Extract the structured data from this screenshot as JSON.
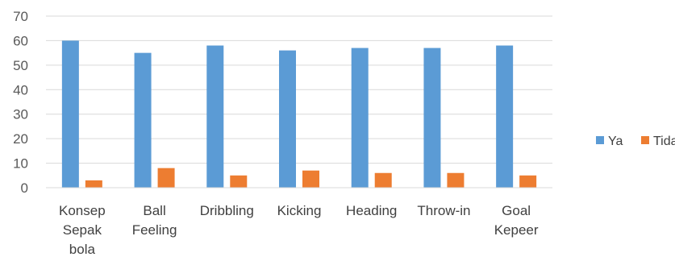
{
  "chart_data": {
    "type": "bar",
    "title": "",
    "xlabel": "",
    "ylabel": "",
    "ylim": [
      0,
      70
    ],
    "yticks": [
      0,
      10,
      20,
      30,
      40,
      50,
      60,
      70
    ],
    "grid": true,
    "legend_position": "right",
    "categories": [
      [
        "Konsep",
        "Sepak",
        "bola"
      ],
      [
        "Ball",
        "Feeling"
      ],
      [
        "Dribbling"
      ],
      [
        "Kicking"
      ],
      [
        "Heading"
      ],
      [
        "Throw-in"
      ],
      [
        "Goal",
        "Kepeer"
      ]
    ],
    "series": [
      {
        "name": "Ya",
        "color": "#5B9BD5",
        "values": [
          60,
          55,
          58,
          56,
          57,
          57,
          58
        ]
      },
      {
        "name": "Tidak",
        "color": "#ED7D31",
        "values": [
          3,
          8,
          5,
          7,
          6,
          6,
          5
        ]
      }
    ]
  }
}
